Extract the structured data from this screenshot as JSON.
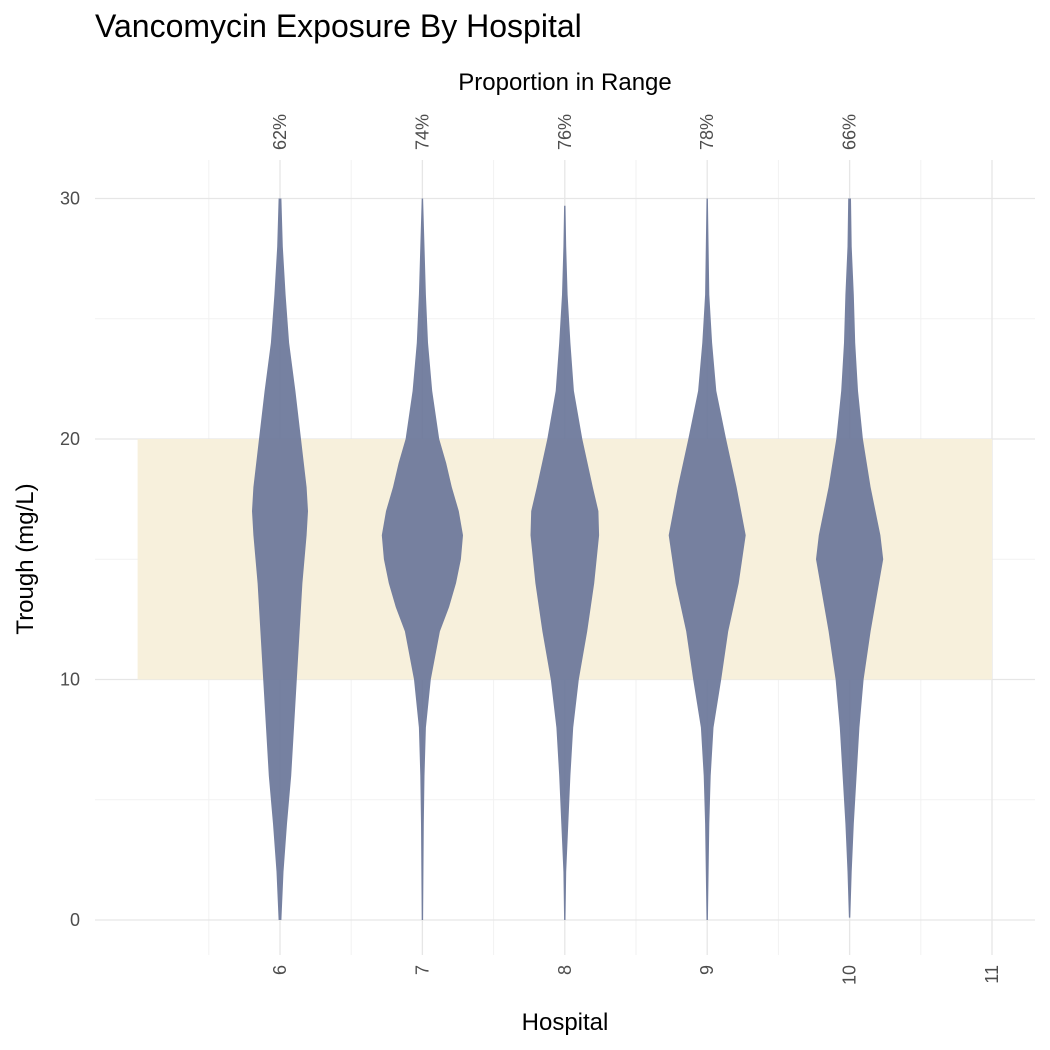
{
  "chart_data": {
    "type": "violin",
    "title": "Vancomycin Exposure By Hospital",
    "xlabel": "Hospital",
    "ylabel": "Trough (mg/L)",
    "secondary_xlabel": "Proportion in Range",
    "x_ticks": [
      "6",
      "7",
      "8",
      "9",
      "10",
      "11"
    ],
    "y_ticks": [
      "0",
      "10",
      "20",
      "30"
    ],
    "ylim": [
      -1.5,
      31
    ],
    "target_range": [
      10,
      20
    ],
    "categories": [
      "6",
      "7",
      "8",
      "9",
      "10"
    ],
    "proportion_in_range": [
      "62%",
      "74%",
      "76%",
      "78%",
      "66%"
    ],
    "violins": [
      {
        "hospital": "6",
        "min": 0,
        "max": 30,
        "profile": [
          [
            0,
            0.02
          ],
          [
            2,
            0.05
          ],
          [
            4,
            0.1
          ],
          [
            6,
            0.16
          ],
          [
            8,
            0.2
          ],
          [
            10,
            0.24
          ],
          [
            12,
            0.28
          ],
          [
            14,
            0.32
          ],
          [
            16,
            0.38
          ],
          [
            17,
            0.4
          ],
          [
            18,
            0.38
          ],
          [
            20,
            0.3
          ],
          [
            22,
            0.22
          ],
          [
            24,
            0.13
          ],
          [
            26,
            0.08
          ],
          [
            28,
            0.04
          ],
          [
            30,
            0.02
          ]
        ]
      },
      {
        "hospital": "7",
        "min": 0,
        "max": 30,
        "profile": [
          [
            0,
            0.01
          ],
          [
            4,
            0.02
          ],
          [
            6,
            0.03
          ],
          [
            8,
            0.05
          ],
          [
            10,
            0.12
          ],
          [
            12,
            0.25
          ],
          [
            13,
            0.38
          ],
          [
            14,
            0.48
          ],
          [
            15,
            0.55
          ],
          [
            16,
            0.58
          ],
          [
            17,
            0.52
          ],
          [
            18,
            0.42
          ],
          [
            19,
            0.34
          ],
          [
            20,
            0.24
          ],
          [
            22,
            0.14
          ],
          [
            24,
            0.08
          ],
          [
            26,
            0.05
          ],
          [
            28,
            0.03
          ],
          [
            30,
            0.01
          ]
        ]
      },
      {
        "hospital": "8",
        "min": 0,
        "max": 29.7,
        "profile": [
          [
            0,
            0.01
          ],
          [
            2,
            0.02
          ],
          [
            4,
            0.05
          ],
          [
            6,
            0.08
          ],
          [
            8,
            0.12
          ],
          [
            10,
            0.2
          ],
          [
            12,
            0.32
          ],
          [
            14,
            0.42
          ],
          [
            16,
            0.49
          ],
          [
            17,
            0.48
          ],
          [
            18,
            0.4
          ],
          [
            20,
            0.25
          ],
          [
            22,
            0.13
          ],
          [
            24,
            0.08
          ],
          [
            26,
            0.04
          ],
          [
            28,
            0.02
          ],
          [
            29.7,
            0.01
          ]
        ]
      },
      {
        "hospital": "9",
        "min": 0,
        "max": 30,
        "profile": [
          [
            0,
            0.01
          ],
          [
            2,
            0.02
          ],
          [
            4,
            0.03
          ],
          [
            6,
            0.05
          ],
          [
            8,
            0.09
          ],
          [
            10,
            0.2
          ],
          [
            12,
            0.3
          ],
          [
            14,
            0.45
          ],
          [
            16,
            0.55
          ],
          [
            18,
            0.42
          ],
          [
            20,
            0.27
          ],
          [
            22,
            0.13
          ],
          [
            24,
            0.07
          ],
          [
            26,
            0.03
          ],
          [
            28,
            0.02
          ],
          [
            30,
            0.01
          ]
        ]
      },
      {
        "hospital": "10",
        "min": 0.1,
        "max": 30,
        "profile": [
          [
            0.1,
            0.01
          ],
          [
            2,
            0.03
          ],
          [
            4,
            0.06
          ],
          [
            6,
            0.1
          ],
          [
            8,
            0.14
          ],
          [
            10,
            0.2
          ],
          [
            12,
            0.3
          ],
          [
            14,
            0.42
          ],
          [
            15,
            0.48
          ],
          [
            16,
            0.44
          ],
          [
            18,
            0.3
          ],
          [
            20,
            0.19
          ],
          [
            22,
            0.12
          ],
          [
            24,
            0.08
          ],
          [
            26,
            0.06
          ],
          [
            28,
            0.03
          ],
          [
            30,
            0.02
          ]
        ]
      }
    ],
    "colors": {
      "violin": "#6a7699",
      "target_band": "#f7f0dc",
      "grid_major": "#e6e6e6",
      "grid_minor": "#f2f2f2"
    }
  }
}
